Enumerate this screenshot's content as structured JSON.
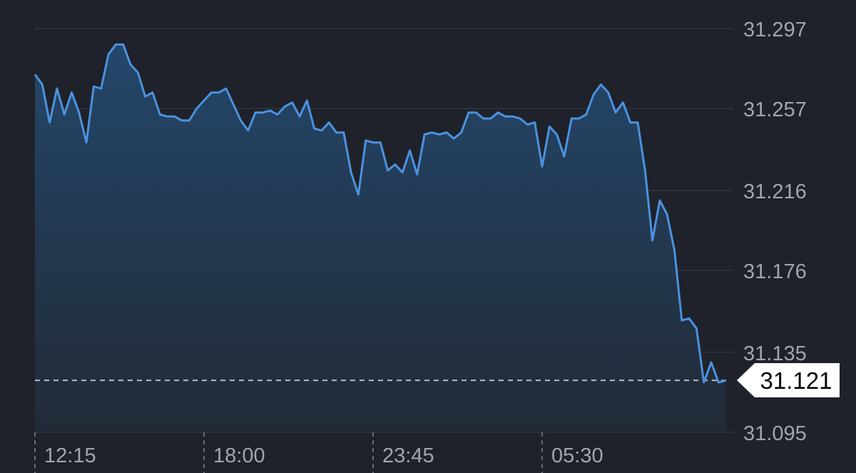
{
  "chart_data": {
    "type": "area",
    "title": "",
    "xlabel": "",
    "ylabel": "",
    "y_ticks": [
      "31.297",
      "31.257",
      "31.216",
      "31.176",
      "31.135",
      "31.095"
    ],
    "x_ticks": [
      "12:15",
      "18:00",
      "23:45",
      "05:30"
    ],
    "ylim": [
      31.095,
      31.297
    ],
    "grid": "horizontal",
    "y_axis_side": "right",
    "current_value": "31.121",
    "colors": {
      "background": "#1f222a",
      "line": "#4a92e0",
      "fill_top": "#24496e",
      "grid": "#2d3039",
      "label": "#a3a5ab",
      "tag_bg": "#ffffff"
    },
    "x": [
      "12:15",
      "12:30",
      "12:45",
      "13:00",
      "13:15",
      "13:30",
      "13:45",
      "14:00",
      "14:15",
      "14:30",
      "14:45",
      "15:00",
      "15:15",
      "15:30",
      "15:45",
      "16:00",
      "16:15",
      "16:30",
      "16:45",
      "17:00",
      "17:15",
      "17:30",
      "17:45",
      "18:00",
      "18:15",
      "18:30",
      "18:45",
      "19:00",
      "19:15",
      "19:30",
      "19:45",
      "20:00",
      "20:15",
      "20:30",
      "20:45",
      "21:00",
      "21:15",
      "21:30",
      "21:45",
      "22:00",
      "22:15",
      "22:30",
      "22:45",
      "23:00",
      "23:15",
      "23:30",
      "23:45",
      "00:00",
      "00:15",
      "00:30",
      "00:45",
      "01:00",
      "01:15",
      "01:30",
      "01:45",
      "02:00",
      "02:15",
      "02:30",
      "02:45",
      "03:00",
      "03:15",
      "03:30",
      "03:45",
      "04:00",
      "04:15",
      "04:30",
      "04:45",
      "05:00",
      "05:15",
      "05:30",
      "05:45",
      "06:00",
      "06:15",
      "06:30",
      "06:45",
      "07:00",
      "07:15",
      "07:30",
      "07:45",
      "08:00",
      "08:15",
      "08:30",
      "08:45",
      "09:00",
      "09:15",
      "09:30",
      "09:45",
      "10:00",
      "10:15",
      "10:30",
      "10:45",
      "11:00",
      "11:15",
      "11:30",
      "11:45"
    ],
    "values": [
      31.274,
      31.269,
      31.25,
      31.267,
      31.254,
      31.265,
      31.255,
      31.24,
      31.268,
      31.267,
      31.284,
      31.289,
      31.289,
      31.279,
      31.275,
      31.263,
      31.265,
      31.254,
      31.253,
      31.253,
      31.251,
      31.251,
      31.257,
      31.261,
      31.265,
      31.265,
      31.267,
      31.259,
      31.251,
      31.246,
      31.255,
      31.255,
      31.256,
      31.254,
      31.258,
      31.26,
      31.253,
      31.261,
      31.247,
      31.246,
      31.25,
      31.245,
      31.245,
      31.225,
      31.214,
      31.241,
      31.24,
      31.24,
      31.226,
      31.229,
      31.225,
      31.236,
      31.224,
      31.244,
      31.245,
      31.244,
      31.245,
      31.242,
      31.245,
      31.255,
      31.255,
      31.252,
      31.252,
      31.255,
      31.253,
      31.253,
      31.252,
      31.249,
      31.25,
      31.228,
      31.248,
      31.244,
      31.233,
      31.252,
      31.252,
      31.254,
      31.264,
      31.269,
      31.265,
      31.255,
      31.26,
      31.25,
      31.25,
      31.226,
      31.191,
      31.211,
      31.204,
      31.186,
      31.151,
      31.152,
      31.147,
      31.12,
      31.13,
      31.12,
      31.121
    ]
  }
}
